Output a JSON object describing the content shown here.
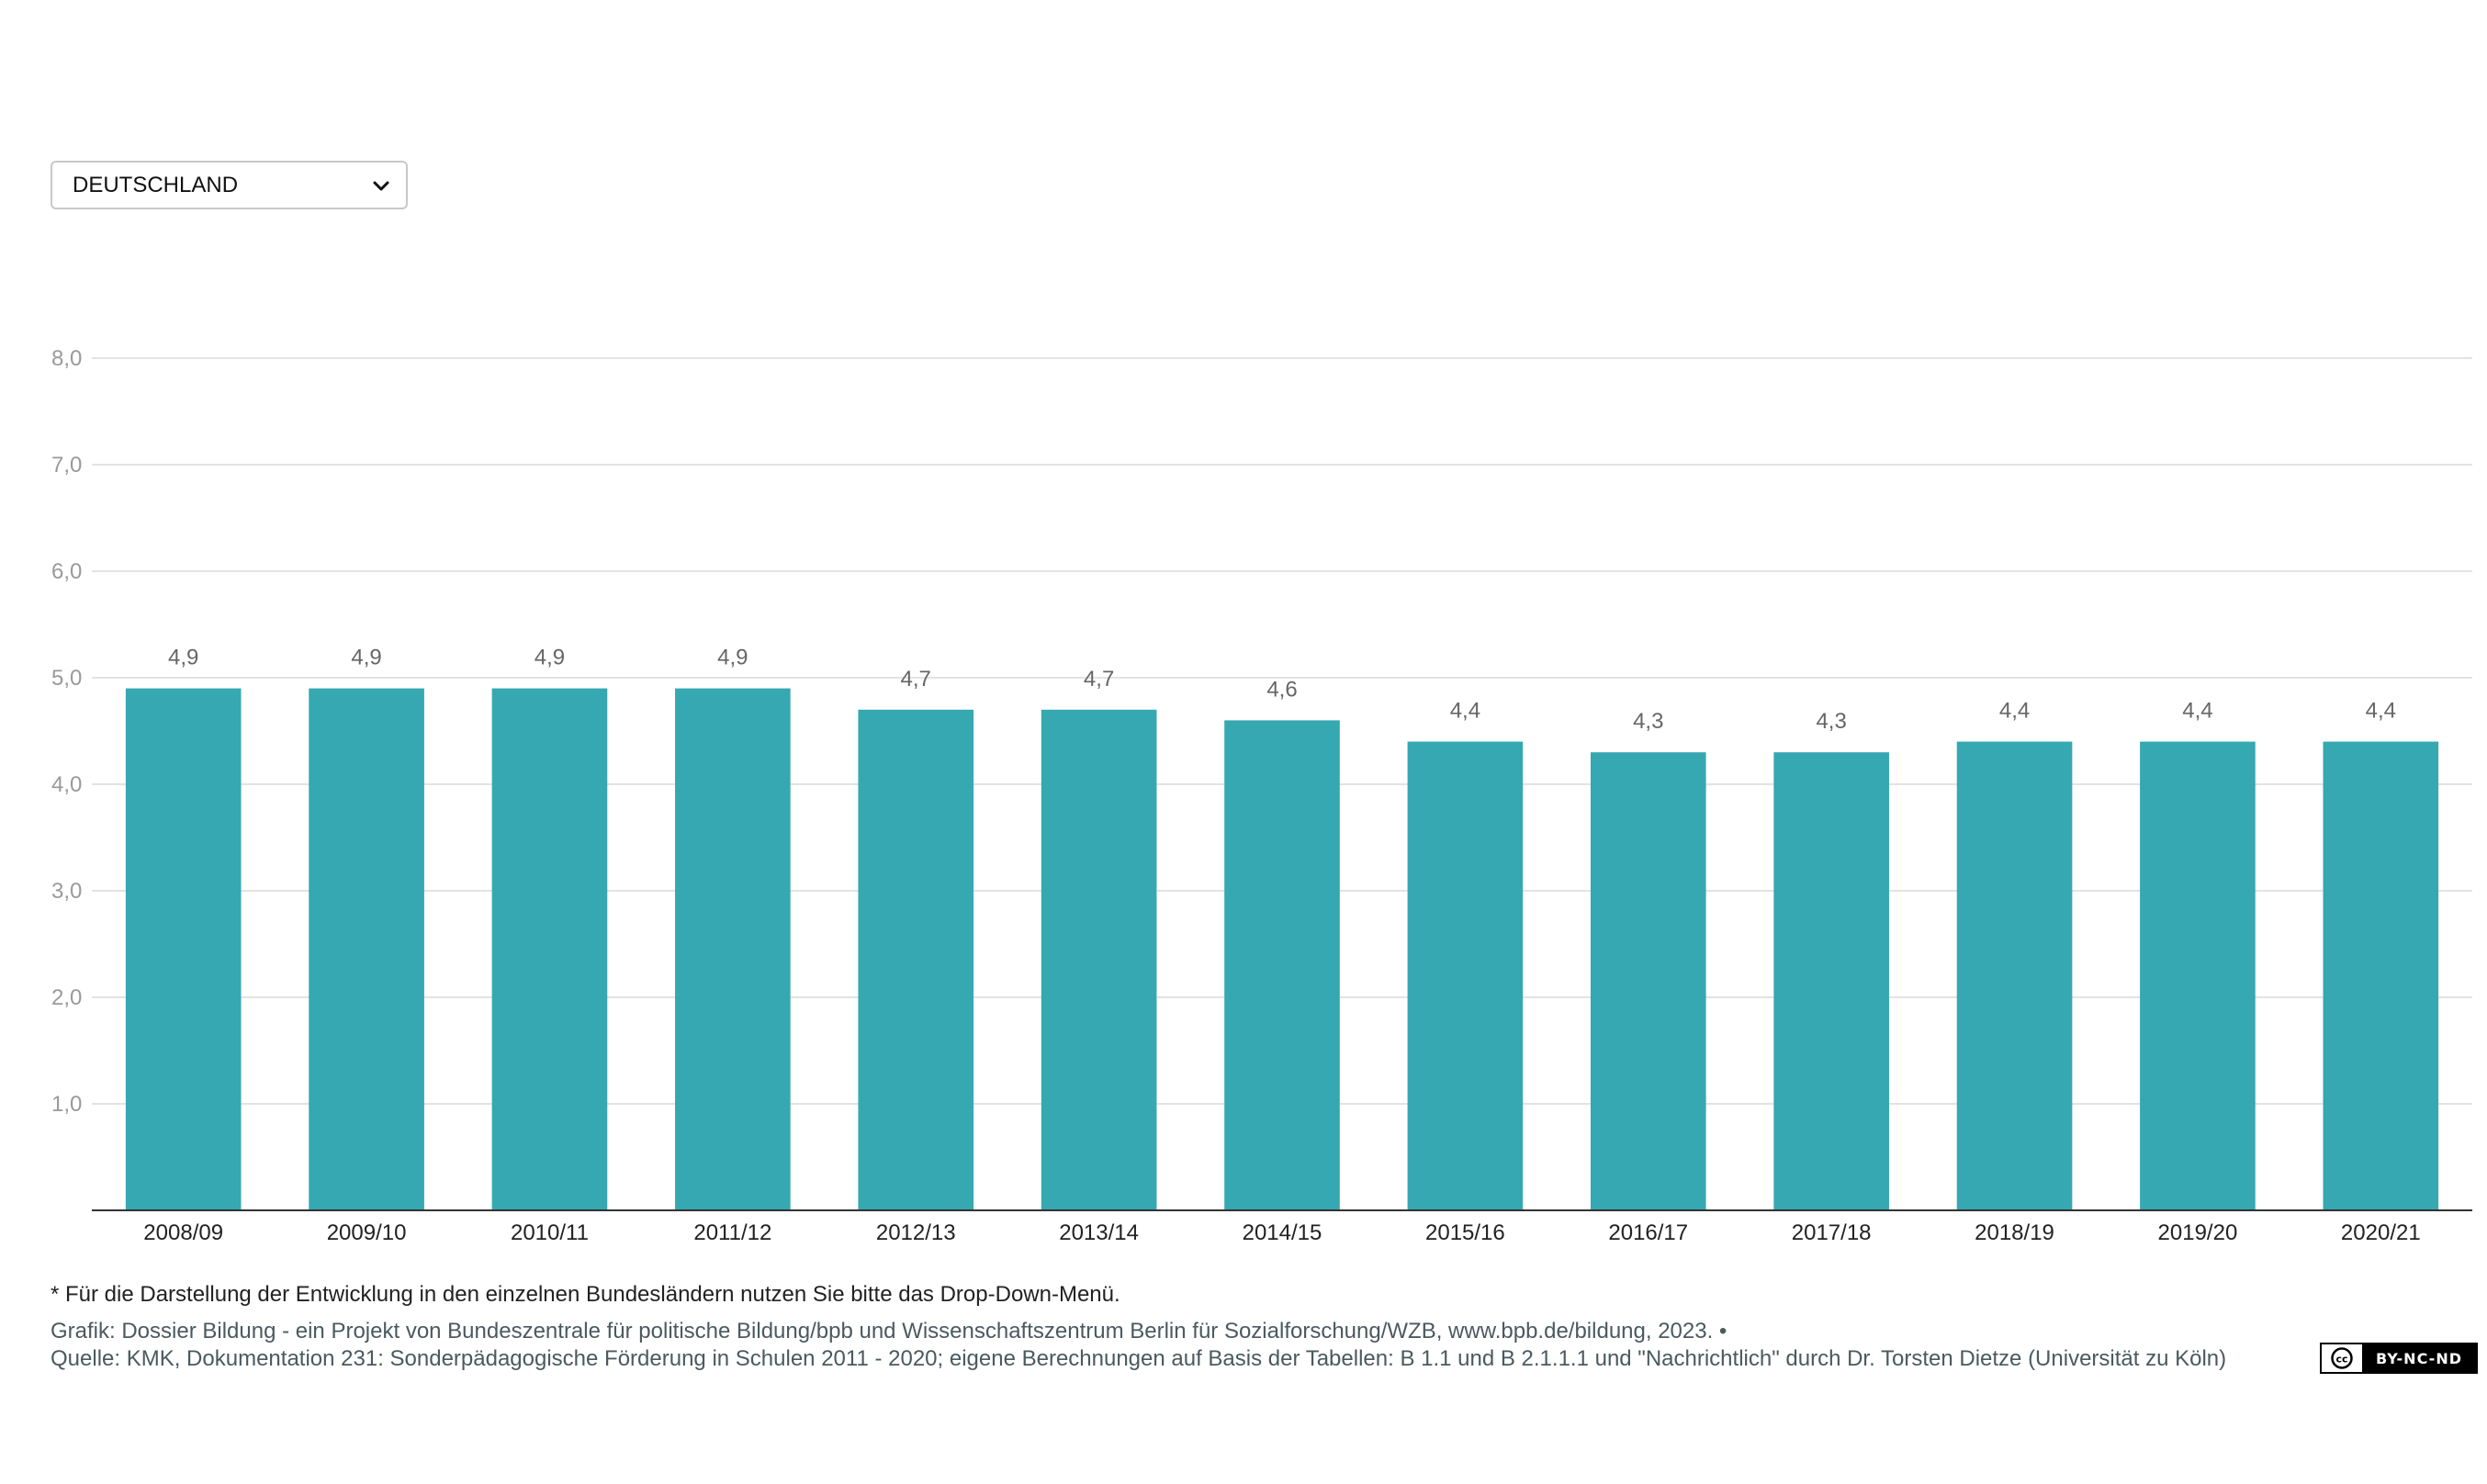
{
  "selector": {
    "selected": "DEUTSCHLAND",
    "icon": "chevron-down-icon"
  },
  "chart_data": {
    "type": "bar",
    "categories": [
      "2008/09",
      "2009/10",
      "2010/11",
      "2011/12",
      "2012/13",
      "2013/14",
      "2014/15",
      "2015/16",
      "2016/17",
      "2017/18",
      "2018/19",
      "2019/20",
      "2020/21"
    ],
    "values": [
      4.9,
      4.9,
      4.9,
      4.9,
      4.7,
      4.7,
      4.6,
      4.4,
      4.3,
      4.3,
      4.4,
      4.4,
      4.4
    ],
    "value_labels": [
      "4,9",
      "4,9",
      "4,9",
      "4,9",
      "4,7",
      "4,7",
      "4,6",
      "4,4",
      "4,3",
      "4,3",
      "4,4",
      "4,4",
      "4,4"
    ],
    "yticks": [
      1,
      2,
      3,
      4,
      5,
      6,
      7,
      8
    ],
    "ytick_labels": [
      "1,0",
      "2,0",
      "3,0",
      "4,0",
      "5,0",
      "6,0",
      "7,0",
      "8,0"
    ],
    "ylim": [
      0,
      8
    ],
    "grid": true,
    "bar_color": "#35a8b2",
    "title": "",
    "xlabel": "",
    "ylabel": ""
  },
  "footer": {
    "note": "* Für die Darstellung der Entwicklung in den einzelnen Bundesländern nutzen Sie bitte das Drop-Down-Menü.",
    "credit": "Grafik: Dossier Bildung - ein Projekt von Bundeszentrale für politische Bildung/bpb und Wissenschaftszentrum Berlin für Sozialforschung/WZB, www.bpb.de/bildung, 2023. •",
    "source": "Quelle: KMK, Dokumentation 231: Sonderpädagogische Förderung in Schulen 2011 - 2020; eigene Berechnungen auf Basis der Tabellen: B 1.1 und B 2.1.1.1 und \"Nachrichtlich\" durch Dr. Torsten Dietze (Universität zu Köln)",
    "license_label": "BY-NC-ND"
  }
}
